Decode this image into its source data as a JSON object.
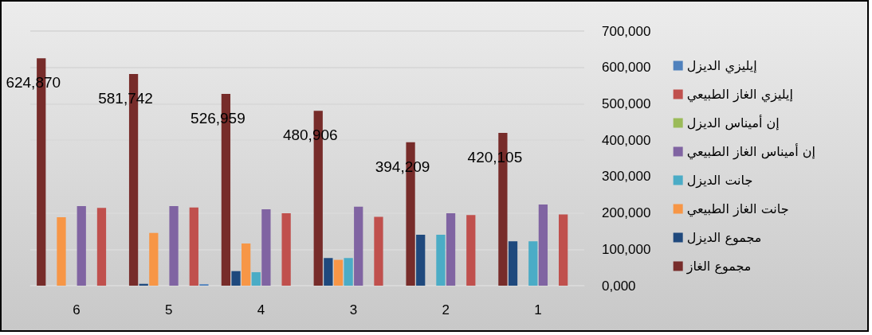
{
  "chart_data": {
    "type": "bar",
    "categories": [
      "6",
      "5",
      "4",
      "3",
      "2",
      "1"
    ],
    "series": [
      {
        "name": "إيليزي الديزل",
        "color": "#4f81bd",
        "values": [
          null,
          4000,
          null,
          null,
          null,
          null
        ]
      },
      {
        "name": "إيليزي الغاز الطبيعي",
        "color": "#c0504d",
        "values": [
          214000,
          215000,
          199000,
          189000,
          194000,
          196000
        ]
      },
      {
        "name": "إن أميناس الديزل",
        "color": "#9bbb59",
        "values": [
          null,
          null,
          null,
          null,
          null,
          null
        ]
      },
      {
        "name": "إن أميناس الغاز الطبيعي",
        "color": "#8064a2",
        "values": [
          219000,
          219000,
          210000,
          217000,
          199000,
          223000
        ]
      },
      {
        "name": "جانت الديزل",
        "color": "#4bacc6",
        "values": [
          null,
          null,
          37000,
          76000,
          140000,
          122000
        ]
      },
      {
        "name": "جانت الغاز الطبيعي",
        "color": "#f79646",
        "values": [
          188000,
          145000,
          116000,
          71000,
          null,
          null
        ]
      },
      {
        "name": "مجموع الديزل",
        "color": "#1f497d",
        "values": [
          null,
          5000,
          40000,
          76000,
          140000,
          122000
        ]
      },
      {
        "name": "مجموع الغاز",
        "color": "#772c2a",
        "values": [
          624870,
          581742,
          526959,
          480906,
          394209,
          420105
        ],
        "value_labels": [
          "624,870",
          "581,742",
          "526,959",
          "480,906",
          "394,209",
          "420,105"
        ]
      }
    ],
    "ylim": [
      0,
      700000
    ],
    "yticks": [
      {
        "value": 0,
        "label": "0,000"
      },
      {
        "value": 100000,
        "label": "100,000"
      },
      {
        "value": 200000,
        "label": "200,000"
      },
      {
        "value": 300000,
        "label": "300,000"
      },
      {
        "value": 400000,
        "label": "400,000"
      },
      {
        "value": 500000,
        "label": "500,000"
      },
      {
        "value": 600000,
        "label": "600,000"
      },
      {
        "value": 700000,
        "label": "700,000"
      }
    ],
    "grid": "y",
    "legend": "right"
  }
}
